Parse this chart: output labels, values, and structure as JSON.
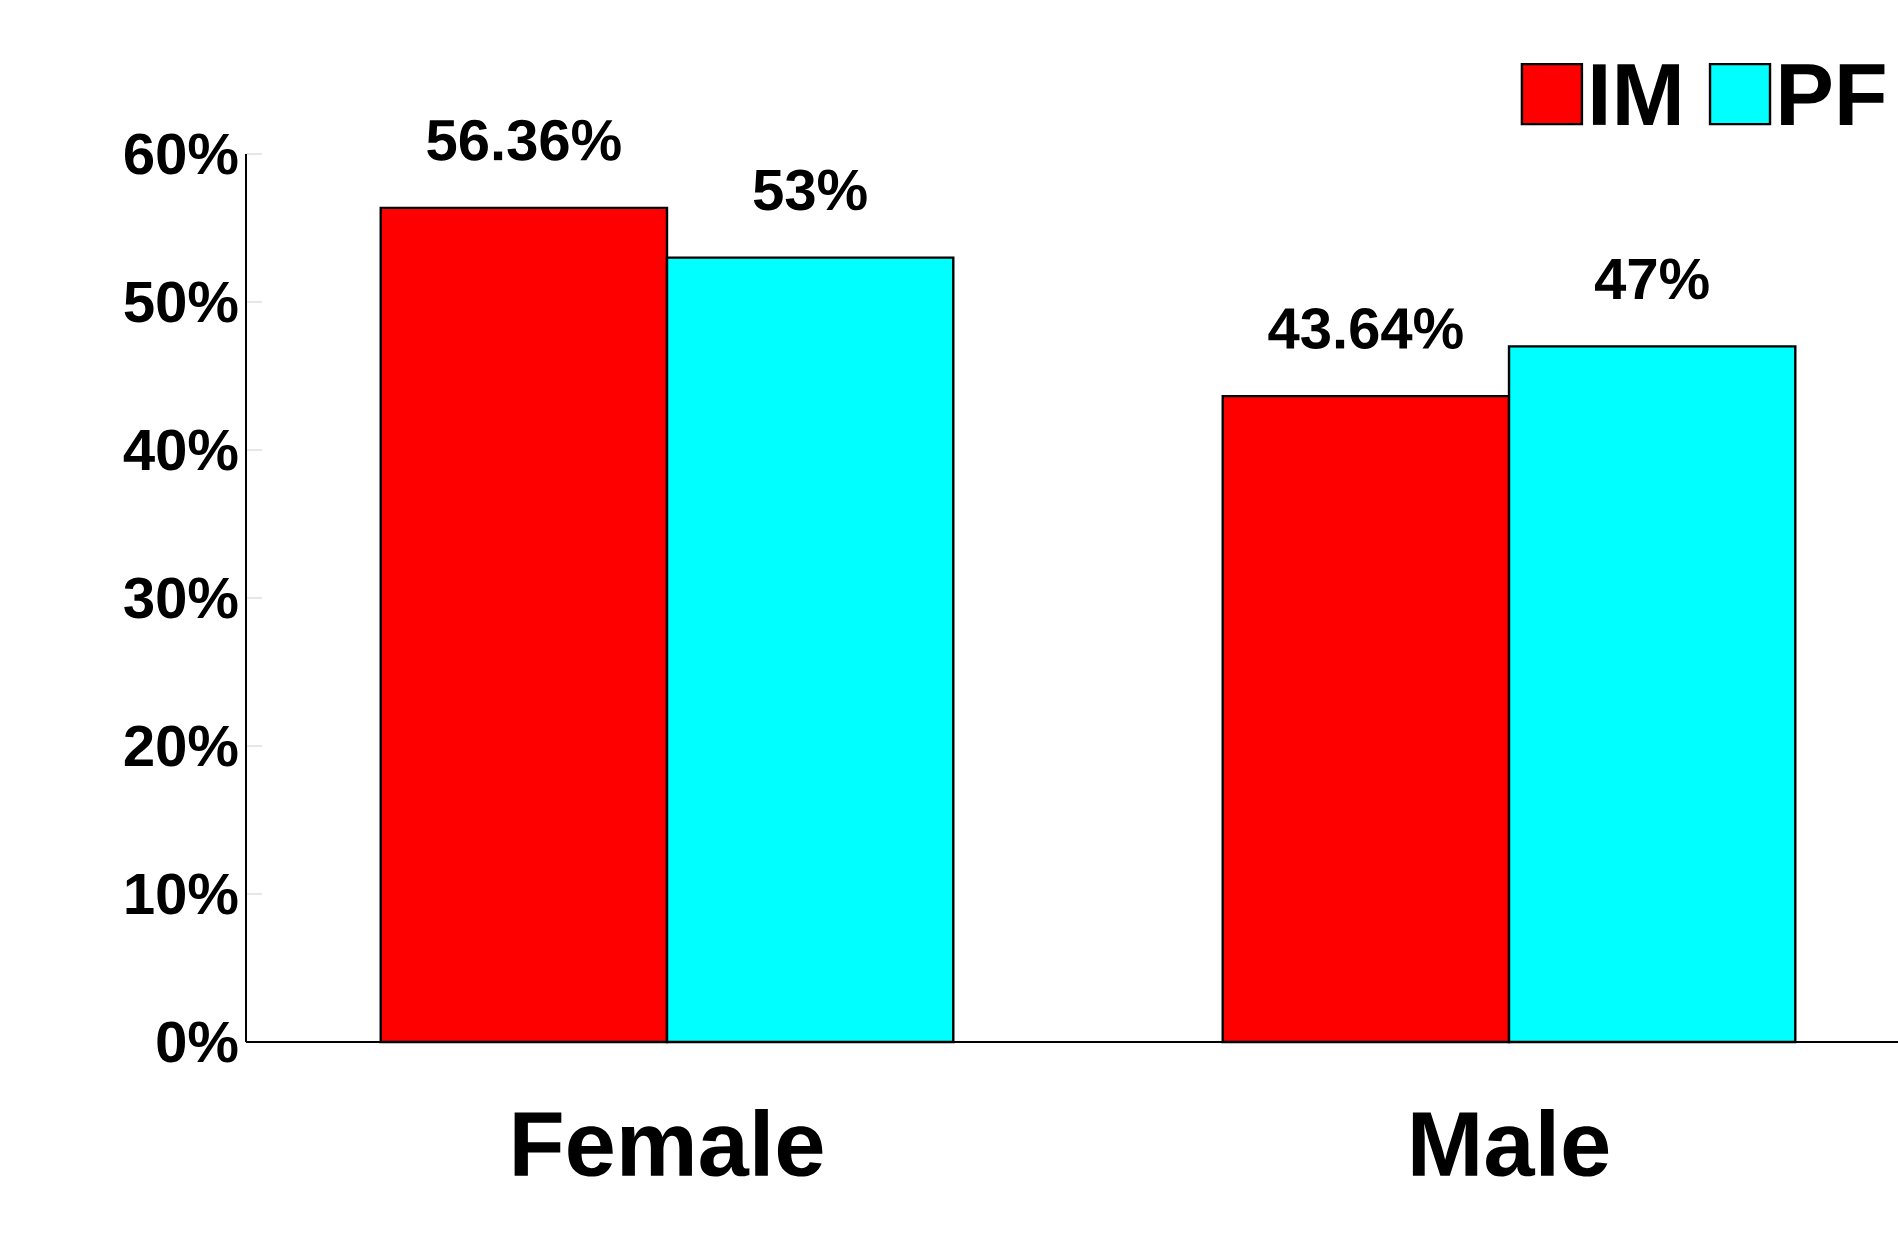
{
  "chart_data": {
    "type": "bar",
    "categories": [
      "Female",
      "Male"
    ],
    "series": [
      {
        "name": "IM",
        "color": "#ff0000",
        "values": [
          56.36,
          43.64
        ],
        "value_labels": [
          "56.36%",
          "43.64%"
        ]
      },
      {
        "name": "PF",
        "color": "#00ffff",
        "values": [
          53,
          47
        ],
        "value_labels": [
          "53%",
          "47%"
        ]
      }
    ],
    "ylim": [
      0,
      60
    ],
    "yticks": [
      {
        "value": 0,
        "label": "0%"
      },
      {
        "value": 10,
        "label": "10%"
      },
      {
        "value": 20,
        "label": "20%"
      },
      {
        "value": 30,
        "label": "30%"
      },
      {
        "value": 40,
        "label": "40%"
      },
      {
        "value": 50,
        "label": "50%"
      },
      {
        "value": 60,
        "label": "60%"
      }
    ],
    "grid": false,
    "legend": "top right"
  }
}
